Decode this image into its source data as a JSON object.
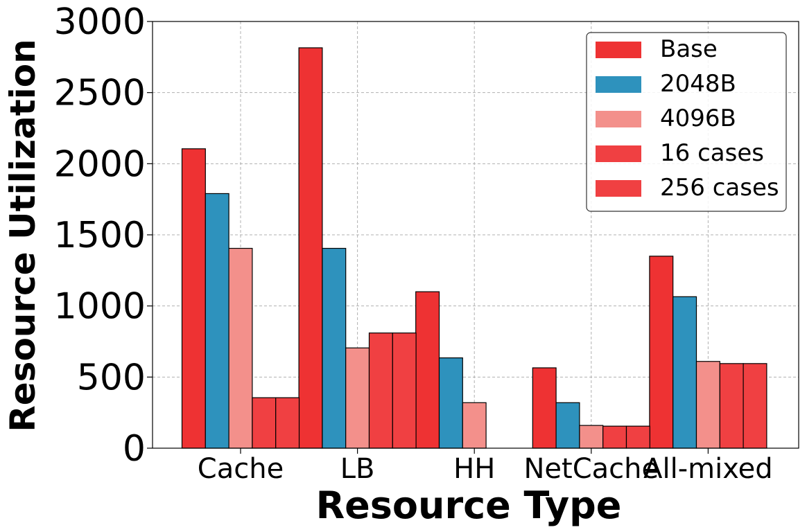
{
  "chart_data": {
    "type": "bar",
    "xlabel": "Resource Type",
    "ylabel": "Resource Utilization",
    "ylim": [
      0,
      3000
    ],
    "yticks": [
      0,
      500,
      1000,
      1500,
      2000,
      2500,
      3000
    ],
    "grid": true,
    "legend_position": "top-right",
    "categories": [
      "Cache",
      "LB",
      "HH",
      "NetCache",
      "All-mixed"
    ],
    "series": [
      {
        "name": "Base",
        "color": "#ee3233",
        "values": [
          2105,
          2815,
          1100,
          565,
          1350
        ]
      },
      {
        "name": "2048B",
        "color": "#2e92bd",
        "values": [
          1790,
          1405,
          635,
          320,
          1065
        ]
      },
      {
        "name": "4096B",
        "color": "#f3908b",
        "values": [
          1405,
          705,
          320,
          160,
          610
        ]
      },
      {
        "name": "16 cases",
        "color": "#f04042",
        "values": [
          355,
          810,
          0,
          155,
          595
        ]
      },
      {
        "name": "256 cases",
        "color": "#f04042",
        "values": [
          355,
          810,
          0,
          155,
          595
        ]
      }
    ]
  }
}
